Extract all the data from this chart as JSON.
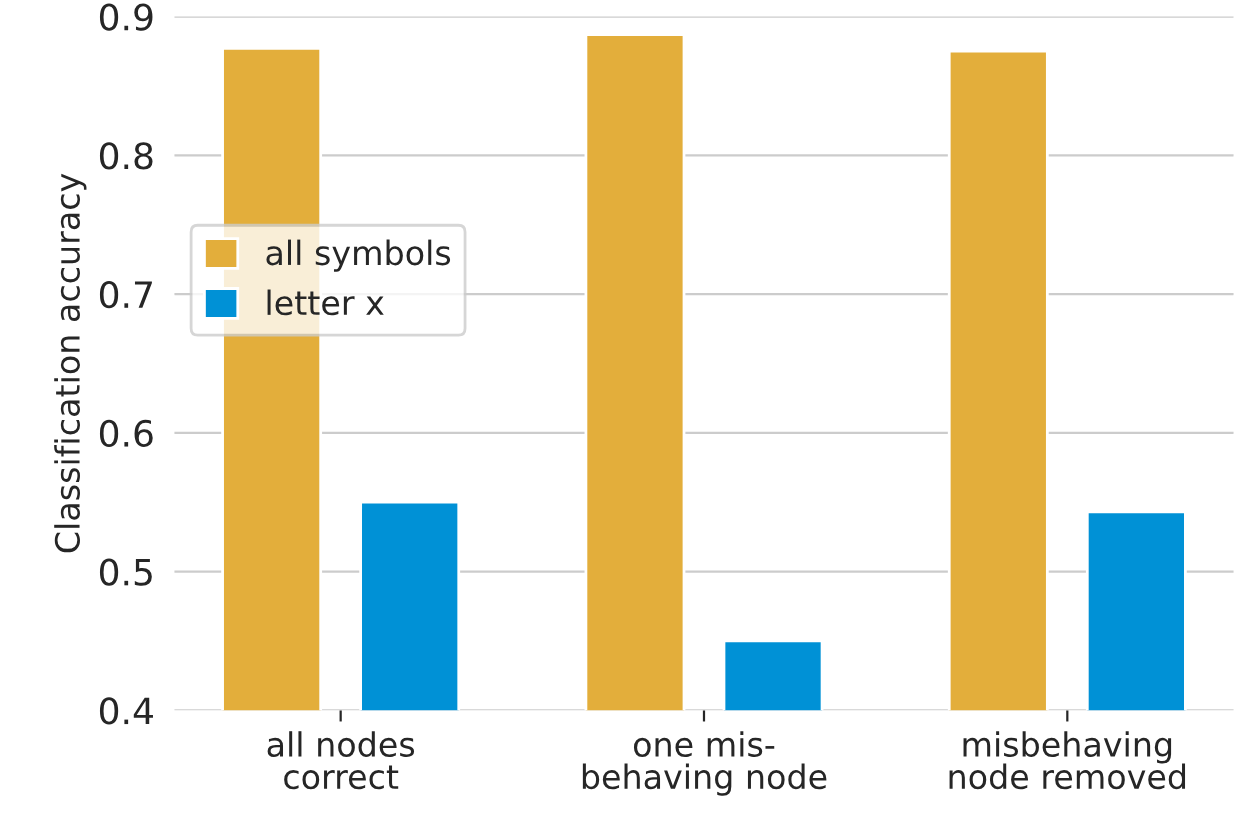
{
  "chart_data": {
    "type": "bar",
    "ylabel": "Classification accuracy",
    "categories": [
      "all nodes\ncorrect",
      "one mis-\nbehaving node",
      "misbehaving\nnode removed"
    ],
    "series": [
      {
        "name": "all symbols",
        "color": "#e3ae3b",
        "values": [
          0.877,
          0.887,
          0.875
        ]
      },
      {
        "name": "letter x",
        "color": "#0091d6",
        "values": [
          0.55,
          0.45,
          0.543
        ]
      }
    ],
    "ylim": [
      0.4,
      0.9
    ],
    "yticks": [
      0.4,
      0.5,
      0.6,
      0.7,
      0.8,
      0.9
    ],
    "grid": "y",
    "legend": "left"
  }
}
